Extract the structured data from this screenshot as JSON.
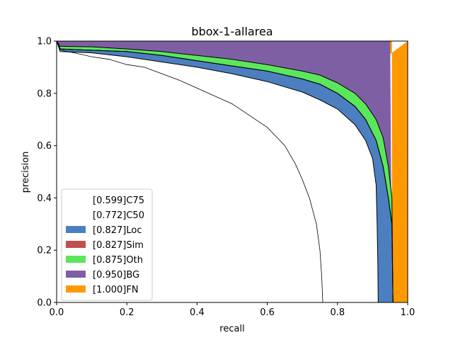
{
  "chart_data": {
    "type": "area",
    "title": "bbox-1-allarea",
    "xlabel": "recall",
    "ylabel": "precision",
    "xlim": [
      0,
      1
    ],
    "ylim": [
      0,
      1
    ],
    "xticks": [
      "0.0",
      "0.2",
      "0.4",
      "0.6",
      "0.8",
      "1.0"
    ],
    "yticks": [
      "0.0",
      "0.2",
      "0.4",
      "0.6",
      "0.8",
      "1.0"
    ],
    "grid": false,
    "legend_position": "lower-left",
    "series": [
      {
        "name": "[0.599]C75",
        "color": "#ffffff",
        "points": [
          [
            0,
            1.0
          ],
          [
            0.01,
            0.965
          ],
          [
            0.05,
            0.955
          ],
          [
            0.1,
            0.94
          ],
          [
            0.15,
            0.93
          ],
          [
            0.2,
            0.91
          ],
          [
            0.25,
            0.9
          ],
          [
            0.3,
            0.875
          ],
          [
            0.35,
            0.85
          ],
          [
            0.4,
            0.82
          ],
          [
            0.45,
            0.79
          ],
          [
            0.5,
            0.76
          ],
          [
            0.55,
            0.715
          ],
          [
            0.6,
            0.67
          ],
          [
            0.65,
            0.6
          ],
          [
            0.68,
            0.53
          ],
          [
            0.7,
            0.47
          ],
          [
            0.72,
            0.4
          ],
          [
            0.74,
            0.3
          ],
          [
            0.75,
            0.2
          ],
          [
            0.755,
            0.1
          ],
          [
            0.758,
            0.0
          ]
        ]
      },
      {
        "name": "[0.772]C50",
        "color": "#ffffff",
        "points": [
          [
            0,
            1.0
          ],
          [
            0.01,
            0.96
          ],
          [
            0.1,
            0.955
          ],
          [
            0.2,
            0.94
          ],
          [
            0.3,
            0.92
          ],
          [
            0.4,
            0.9
          ],
          [
            0.5,
            0.875
          ],
          [
            0.6,
            0.845
          ],
          [
            0.7,
            0.805
          ],
          [
            0.75,
            0.775
          ],
          [
            0.8,
            0.74
          ],
          [
            0.85,
            0.68
          ],
          [
            0.88,
            0.62
          ],
          [
            0.9,
            0.55
          ],
          [
            0.91,
            0.45
          ],
          [
            0.913,
            0.3
          ],
          [
            0.915,
            0.15
          ],
          [
            0.916,
            0.0
          ]
        ]
      },
      {
        "name": "[0.827]Loc",
        "color": "#4c7fbf",
        "points": [
          [
            0,
            1.0
          ],
          [
            0.01,
            0.97
          ],
          [
            0.1,
            0.965
          ],
          [
            0.2,
            0.96
          ],
          [
            0.3,
            0.945
          ],
          [
            0.4,
            0.925
          ],
          [
            0.5,
            0.905
          ],
          [
            0.6,
            0.885
          ],
          [
            0.7,
            0.855
          ],
          [
            0.75,
            0.835
          ],
          [
            0.8,
            0.8
          ],
          [
            0.85,
            0.75
          ],
          [
            0.88,
            0.7
          ],
          [
            0.91,
            0.62
          ],
          [
            0.93,
            0.52
          ],
          [
            0.945,
            0.4
          ],
          [
            0.955,
            0.3
          ],
          [
            0.958,
            0.0
          ]
        ]
      },
      {
        "name": "[0.827]Sim",
        "color": "#c0504d",
        "points": [
          [
            0,
            1.0
          ],
          [
            0.01,
            0.97
          ],
          [
            0.1,
            0.965
          ],
          [
            0.2,
            0.96
          ],
          [
            0.3,
            0.945
          ],
          [
            0.4,
            0.925
          ],
          [
            0.5,
            0.905
          ],
          [
            0.6,
            0.885
          ],
          [
            0.7,
            0.855
          ],
          [
            0.75,
            0.835
          ],
          [
            0.8,
            0.8
          ],
          [
            0.85,
            0.75
          ],
          [
            0.88,
            0.7
          ],
          [
            0.91,
            0.62
          ],
          [
            0.93,
            0.52
          ],
          [
            0.945,
            0.4
          ],
          [
            0.955,
            0.3
          ],
          [
            0.958,
            0.0
          ]
        ]
      },
      {
        "name": "[0.875]Oth",
        "color": "#5ce65c",
        "points": [
          [
            0,
            1.0
          ],
          [
            0.01,
            0.98
          ],
          [
            0.1,
            0.978
          ],
          [
            0.2,
            0.97
          ],
          [
            0.3,
            0.96
          ],
          [
            0.4,
            0.945
          ],
          [
            0.5,
            0.93
          ],
          [
            0.6,
            0.91
          ],
          [
            0.7,
            0.885
          ],
          [
            0.75,
            0.87
          ],
          [
            0.8,
            0.84
          ],
          [
            0.85,
            0.8
          ],
          [
            0.88,
            0.76
          ],
          [
            0.91,
            0.7
          ],
          [
            0.93,
            0.63
          ],
          [
            0.945,
            0.52
          ],
          [
            0.955,
            0.4
          ],
          [
            0.958,
            0.0
          ]
        ]
      },
      {
        "name": "[0.950]BG",
        "color": "#7f5fa3",
        "points": [
          [
            0,
            1.0
          ],
          [
            0.95,
            1.0
          ],
          [
            0.955,
            0.0
          ]
        ]
      },
      {
        "name": "[1.000]FN",
        "color": "#ff9900",
        "points": [
          [
            0,
            1.0
          ],
          [
            0.955,
            1.0
          ],
          [
            0.955,
            0.0
          ],
          [
            1.0,
            0.0
          ],
          [
            1.0,
            1.0
          ]
        ]
      }
    ]
  }
}
